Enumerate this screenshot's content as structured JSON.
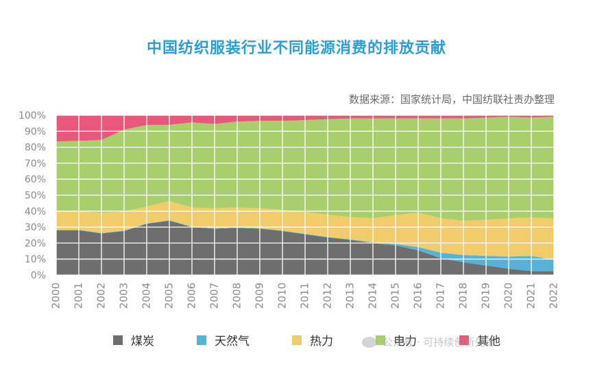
{
  "title": "中国纺织服装行业不同能源消费的排放贡献",
  "source": "数据来源：国家统计局，中国纺联社责办整理",
  "watermark": "公众号 · 可持续创新先锋",
  "chart_data": {
    "type": "area",
    "stacked": true,
    "percent": true,
    "x": [
      "2000",
      "2001",
      "2002",
      "2003",
      "2004",
      "2005",
      "2006",
      "2007",
      "2008",
      "2009",
      "2010",
      "2011",
      "2012",
      "2013",
      "2014",
      "2015",
      "2016",
      "2017",
      "2018",
      "2019",
      "2020",
      "2021",
      "2022"
    ],
    "yticks": [
      "0%",
      "10%",
      "20%",
      "30%",
      "40%",
      "50%",
      "60%",
      "70%",
      "80%",
      "90%",
      "100%"
    ],
    "ylim": [
      0,
      100
    ],
    "grid": true,
    "legend_position": "bottom",
    "series": [
      {
        "name": "煤炭",
        "color": "#6e6e6e",
        "values": [
          28,
          28,
          26,
          27.5,
          32,
          34,
          30,
          29,
          29.5,
          29,
          27.5,
          25.5,
          23.5,
          22,
          20,
          18.5,
          15.5,
          10.5,
          8,
          6,
          4,
          2.5,
          2.5
        ]
      },
      {
        "name": "天然气",
        "color": "#56b2d8",
        "values": [
          0.3,
          0.3,
          0.3,
          0.3,
          0.3,
          0.3,
          0.3,
          0.3,
          0.3,
          0.3,
          0.3,
          0.3,
          0.3,
          0.3,
          0.5,
          1,
          2,
          3.5,
          4.5,
          6,
          7.5,
          9.5,
          7
        ]
      },
      {
        "name": "热力",
        "color": "#f0cc6a",
        "values": [
          11.5,
          12,
          12.5,
          12,
          10.5,
          12,
          12,
          12.5,
          12.5,
          12.5,
          13,
          13.5,
          14,
          14,
          15,
          18,
          21.5,
          21.5,
          21.5,
          22.5,
          24,
          24,
          26
        ]
      },
      {
        "name": "电力",
        "color": "#a9cf6d",
        "values": [
          43.7,
          43.7,
          45.7,
          51.2,
          51,
          47.7,
          53.2,
          52.7,
          53.7,
          54.7,
          55.7,
          57.7,
          59.7,
          61.7,
          62.5,
          60.5,
          59,
          62.5,
          64,
          64,
          63.5,
          62.5,
          63.5
        ]
      },
      {
        "name": "其他",
        "color": "#e8587a",
        "values": [
          16.5,
          16,
          15.5,
          9,
          6.2,
          6,
          4.5,
          5.5,
          4,
          3.5,
          3.5,
          3,
          2.5,
          2,
          2,
          2,
          2,
          2,
          2,
          1.5,
          1,
          1.5,
          1
        ]
      }
    ]
  }
}
